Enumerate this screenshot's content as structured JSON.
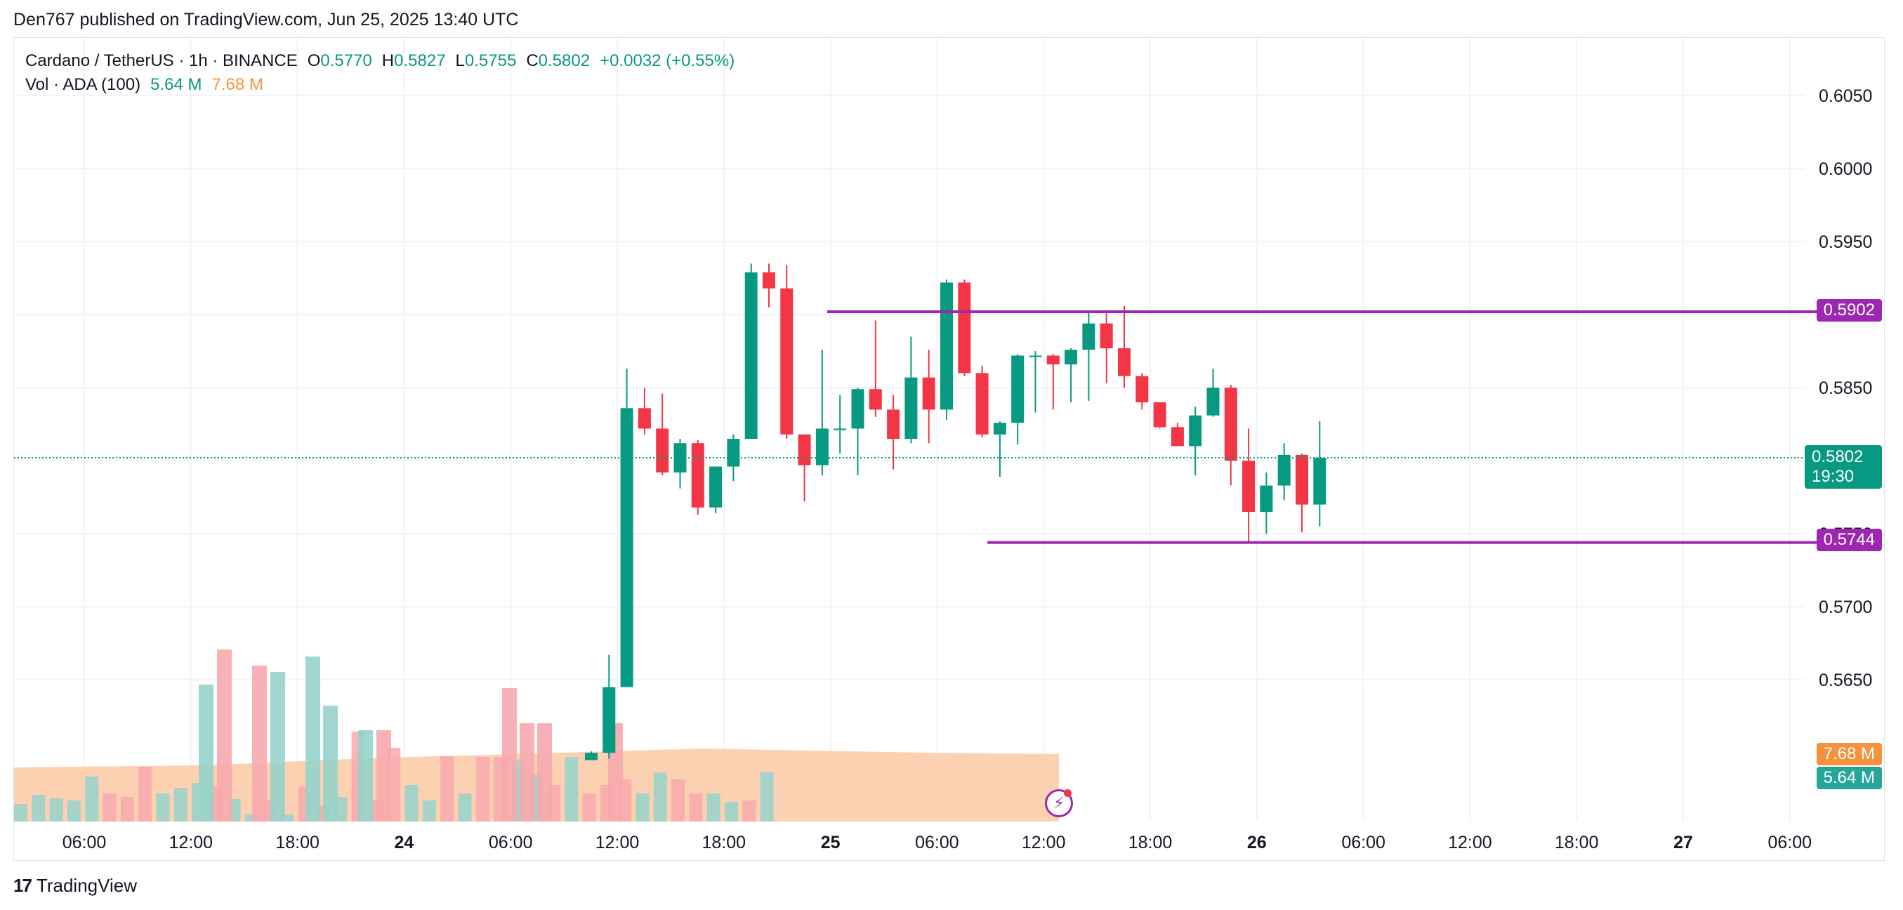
{
  "header": {
    "published": "Den767 published on TradingView.com, Jun 25, 2025 13:40 UTC"
  },
  "legend": {
    "symbol": "Cardano / TetherUS · 1h · BINANCE",
    "o_label": "O",
    "o_value": "0.5770",
    "h_label": "H",
    "h_value": "0.5827",
    "l_label": "L",
    "l_value": "0.5755",
    "c_label": "C",
    "c_value": "0.5802",
    "change": "+0.0032 (+0.55%)",
    "vol_label": "Vol · ADA (100)",
    "vol_value": "5.64 M",
    "vol_ma_value": "7.68 M"
  },
  "price_tags": {
    "resistance": "0.5902",
    "current": "0.5802",
    "countdown": "19:30",
    "support": "0.5744",
    "vol_ma": "7.68 M",
    "vol": "5.64 M"
  },
  "footer": {
    "brand": "TradingView"
  },
  "colors": {
    "up": "#089981",
    "down": "#f23645",
    "up_vol": "#96d3cb",
    "down_vol": "#f7a9ae",
    "vol_ma_fill": "#fcc9a3",
    "level_line": "#9c27b0",
    "grid": "#f0f3fa",
    "text": "#131722"
  },
  "chart_data": {
    "type": "candlestick",
    "title": "Cardano / TetherUS · 1h · BINANCE",
    "x_ticks": [
      "06:00",
      "12:00",
      "18:00",
      "24",
      "06:00",
      "12:00",
      "18:00",
      "25",
      "06:00",
      "12:00",
      "18:00",
      "26",
      "06:00",
      "12:00",
      "18:00",
      "27",
      "06:00"
    ],
    "y_ticks": [
      "0.6050",
      "0.6000",
      "0.5950",
      "0.5850",
      "0.5700",
      "0.5650"
    ],
    "ylim": [
      0.5596,
      0.6079
    ],
    "candles": [
      {
        "time": "23 13:00",
        "o": null,
        "h": null,
        "l": null,
        "c": null
      },
      {
        "time": "23 19:00",
        "o": 0.5595,
        "h": 0.5601,
        "l": 0.5596,
        "c": 0.56
      },
      {
        "time": "23 20:00",
        "o": 0.56,
        "h": 0.5667,
        "l": 0.5596,
        "c": 0.5645
      },
      {
        "time": "23 21:00",
        "o": 0.5645,
        "h": 0.5863,
        "l": 0.5645,
        "c": 0.5836
      },
      {
        "time": "23 22:00",
        "o": 0.5836,
        "h": 0.585,
        "l": 0.5818,
        "c": 0.5822
      },
      {
        "time": "23 23:00",
        "o": 0.5822,
        "h": 0.5846,
        "l": 0.579,
        "c": 0.5792
      },
      {
        "time": "24 00:00",
        "o": 0.5792,
        "h": 0.5815,
        "l": 0.5781,
        "c": 0.5812
      },
      {
        "time": "24 01:00",
        "o": 0.5812,
        "h": 0.5814,
        "l": 0.5763,
        "c": 0.5768
      },
      {
        "time": "24 02:00",
        "o": 0.5768,
        "h": 0.5796,
        "l": 0.5764,
        "c": 0.5796
      },
      {
        "time": "24 03:00",
        "o": 0.5796,
        "h": 0.5818,
        "l": 0.5786,
        "c": 0.5815
      },
      {
        "time": "24 04:00",
        "o": 0.5815,
        "h": 0.5935,
        "l": 0.5815,
        "c": 0.5929
      },
      {
        "time": "24 05:00",
        "o": 0.5929,
        "h": 0.5935,
        "l": 0.5905,
        "c": 0.5918
      },
      {
        "time": "24 06:00",
        "o": 0.5918,
        "h": 0.5934,
        "l": 0.5815,
        "c": 0.5818
      },
      {
        "time": "24 07:00",
        "o": 0.5818,
        "h": 0.5818,
        "l": 0.5772,
        "c": 0.5797
      },
      {
        "time": "24 08:00",
        "o": 0.5797,
        "h": 0.5876,
        "l": 0.579,
        "c": 0.5822
      },
      {
        "time": "24 09:00",
        "o": 0.5822,
        "h": 0.5845,
        "l": 0.5805,
        "c": 0.5822
      },
      {
        "time": "24 10:00",
        "o": 0.5822,
        "h": 0.585,
        "l": 0.579,
        "c": 0.5849
      },
      {
        "time": "24 11:00",
        "o": 0.5849,
        "h": 0.5896,
        "l": 0.583,
        "c": 0.5835
      },
      {
        "time": "24 12:00",
        "o": 0.5835,
        "h": 0.5845,
        "l": 0.5794,
        "c": 0.5815
      },
      {
        "time": "24 13:00",
        "o": 0.5815,
        "h": 0.5885,
        "l": 0.5812,
        "c": 0.5857
      },
      {
        "time": "24 14:00",
        "o": 0.5857,
        "h": 0.5876,
        "l": 0.5812,
        "c": 0.5835
      },
      {
        "time": "24 15:00",
        "o": 0.5835,
        "h": 0.5924,
        "l": 0.5828,
        "c": 0.5922
      },
      {
        "time": "24 16:00",
        "o": 0.5922,
        "h": 0.5924,
        "l": 0.5858,
        "c": 0.586
      },
      {
        "time": "24 17:00",
        "o": 0.586,
        "h": 0.5865,
        "l": 0.5816,
        "c": 0.5818
      },
      {
        "time": "24 18:00",
        "o": 0.5818,
        "h": 0.5827,
        "l": 0.5789,
        "c": 0.5826
      },
      {
        "time": "24 19:00",
        "o": 0.5826,
        "h": 0.5873,
        "l": 0.5811,
        "c": 0.5872
      },
      {
        "time": "24 20:00",
        "o": 0.5872,
        "h": 0.5875,
        "l": 0.5833,
        "c": 0.5872
      },
      {
        "time": "24 21:00",
        "o": 0.5872,
        "h": 0.5873,
        "l": 0.5835,
        "c": 0.5866
      },
      {
        "time": "24 22:00",
        "o": 0.5866,
        "h": 0.5877,
        "l": 0.584,
        "c": 0.5876
      },
      {
        "time": "24 23:00",
        "o": 0.5876,
        "h": 0.5902,
        "l": 0.5841,
        "c": 0.5894
      },
      {
        "time": "25 00:00",
        "o": 0.5894,
        "h": 0.5901,
        "l": 0.5853,
        "c": 0.5877
      },
      {
        "time": "25 01:00",
        "o": 0.5877,
        "h": 0.5906,
        "l": 0.585,
        "c": 0.5858
      },
      {
        "time": "25 02:00",
        "o": 0.5858,
        "h": 0.586,
        "l": 0.5835,
        "c": 0.584
      },
      {
        "time": "25 03:00",
        "o": 0.584,
        "h": 0.584,
        "l": 0.5822,
        "c": 0.5823
      },
      {
        "time": "25 04:00",
        "o": 0.5823,
        "h": 0.5826,
        "l": 0.581,
        "c": 0.581
      },
      {
        "time": "25 05:00",
        "o": 0.581,
        "h": 0.5837,
        "l": 0.579,
        "c": 0.5831
      },
      {
        "time": "25 06:00",
        "o": 0.5831,
        "h": 0.5863,
        "l": 0.583,
        "c": 0.585
      },
      {
        "time": "25 07:00",
        "o": 0.585,
        "h": 0.5852,
        "l": 0.5783,
        "c": 0.58
      },
      {
        "time": "25 08:00",
        "o": 0.58,
        "h": 0.5822,
        "l": 0.5744,
        "c": 0.5765
      },
      {
        "time": "25 09:00",
        "o": 0.5765,
        "h": 0.5792,
        "l": 0.575,
        "c": 0.5783
      },
      {
        "time": "25 10:00",
        "o": 0.5783,
        "h": 0.5812,
        "l": 0.5773,
        "c": 0.5804
      },
      {
        "time": "25 11:00",
        "o": 0.5804,
        "h": 0.5805,
        "l": 0.5751,
        "c": 0.577
      },
      {
        "time": "25 12:00",
        "o": 0.577,
        "h": 0.5827,
        "l": 0.5755,
        "c": 0.5802
      }
    ],
    "volume_ma": 7.68,
    "volume_last": 5.64,
    "levels": [
      {
        "label": "0.5902",
        "value": 0.5902
      },
      {
        "label": "0.5744",
        "value": 0.5744
      }
    ],
    "last_price": 0.5802
  }
}
